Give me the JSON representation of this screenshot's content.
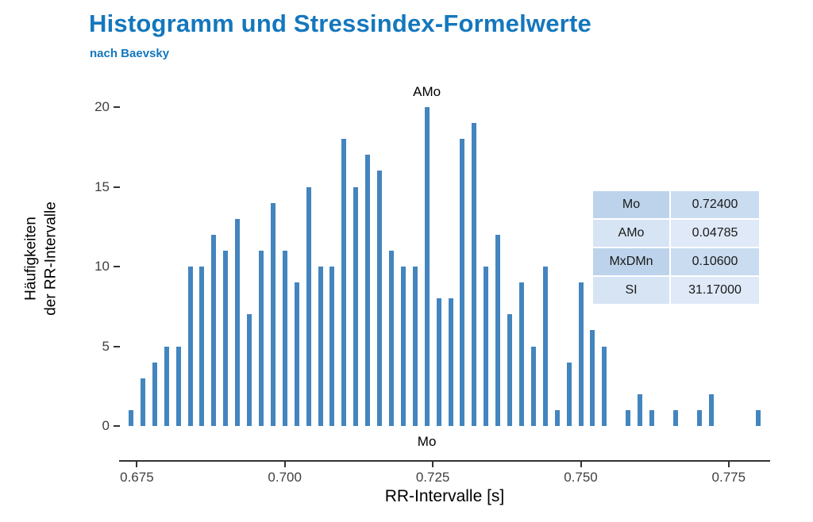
{
  "header": {
    "title": "Histogramm und Stressindex-Formelwerte",
    "subtitle": "nach Baevsky"
  },
  "colors": {
    "accent": "#1477bd",
    "bar": "#4385be",
    "axis": "#333333",
    "tick_text": "#404040"
  },
  "chart_data": {
    "type": "bar",
    "title": "Histogramm und Stressindex-Formelwerte",
    "subtitle": "nach Baevsky",
    "xlabel": "RR-Intervalle [s]",
    "ylabel_lines": [
      "Häufigkeiten",
      "der RR-Intervalle"
    ],
    "bin_width": 0.002,
    "x": [
      0.674,
      0.676,
      0.678,
      0.68,
      0.682,
      0.684,
      0.686,
      0.688,
      0.69,
      0.692,
      0.694,
      0.696,
      0.698,
      0.7,
      0.702,
      0.704,
      0.706,
      0.708,
      0.71,
      0.712,
      0.714,
      0.716,
      0.718,
      0.72,
      0.722,
      0.724,
      0.726,
      0.728,
      0.73,
      0.732,
      0.734,
      0.736,
      0.738,
      0.74,
      0.742,
      0.744,
      0.746,
      0.748,
      0.75,
      0.752,
      0.754,
      0.758,
      0.76,
      0.762,
      0.766,
      0.77,
      0.772,
      0.78
    ],
    "values": [
      1,
      3,
      4,
      5,
      5,
      10,
      10,
      12,
      11,
      13,
      7,
      11,
      14,
      11,
      9,
      15,
      10,
      10,
      18,
      15,
      17,
      16,
      11,
      10,
      10,
      20,
      8,
      8,
      18,
      19,
      10,
      12,
      7,
      9,
      5,
      10,
      1,
      4,
      9,
      6,
      5,
      1,
      2,
      1,
      1,
      1,
      2,
      1
    ],
    "xlim": [
      0.672,
      0.782
    ],
    "ylim": [
      0,
      20
    ],
    "x_ticks": [
      0.675,
      0.7,
      0.725,
      0.75,
      0.775
    ],
    "x_tick_labels": [
      "0.675",
      "0.700",
      "0.725",
      "0.750",
      "0.775"
    ],
    "y_ticks": [
      0,
      5,
      10,
      15,
      20
    ],
    "y_tick_labels": [
      "0",
      "5",
      "10",
      "15",
      "20"
    ],
    "grid": false,
    "legend": "none",
    "annotations": [
      {
        "text": "AMo",
        "x": 0.724,
        "pos": "top"
      },
      {
        "text": "Mo",
        "x": 0.724,
        "pos": "bottom"
      }
    ]
  },
  "table": {
    "rows": [
      {
        "label": "Mo",
        "value": "0.72400",
        "label_bg": "#bcd3eb",
        "value_bg": "#c9dcf0"
      },
      {
        "label": "AMo",
        "value": "0.04785",
        "label_bg": "#d7e4f4",
        "value_bg": "#dfe9f7"
      },
      {
        "label": "MxDMn",
        "value": "0.10600",
        "label_bg": "#bcd3eb",
        "value_bg": "#c9dcf0"
      },
      {
        "label": "SI",
        "value": "31.17000",
        "label_bg": "#d7e4f4",
        "value_bg": "#dfe9f7"
      }
    ]
  }
}
